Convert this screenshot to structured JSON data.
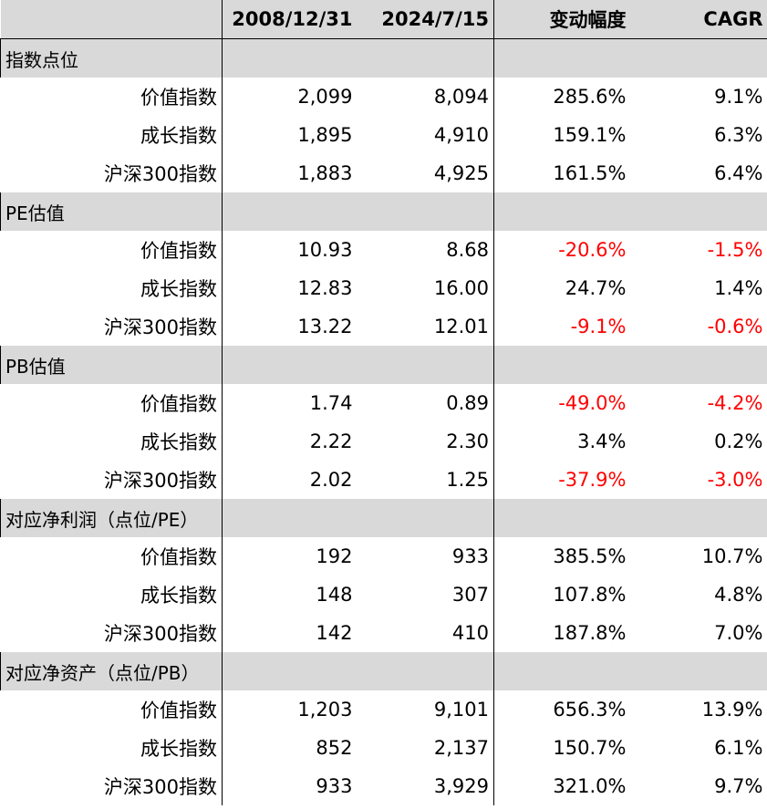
{
  "header": [
    "",
    "2008/12/31",
    "2024/7/15",
    "变动幅度",
    "CAGR"
  ],
  "sections": [
    {
      "title": "指数点位",
      "rows": [
        {
          "label": "价值指数",
          "v2008": "2,099",
          "v2024": "8,094",
          "change": "285.6%",
          "cagr": "9.1%"
        },
        {
          "label": "成长指数",
          "v2008": "1,895",
          "v2024": "4,910",
          "change": "159.1%",
          "cagr": "6.3%"
        },
        {
          "label": "沪深300指数",
          "v2008": "1,883",
          "v2024": "4,925",
          "change": "161.5%",
          "cagr": "6.4%"
        }
      ]
    },
    {
      "title": "PE估值",
      "rows": [
        {
          "label": "价值指数",
          "v2008": "10.93",
          "v2024": "8.68",
          "change": "-20.6%",
          "cagr": "-1.5%"
        },
        {
          "label": "成长指数",
          "v2008": "12.83",
          "v2024": "16.00",
          "change": "24.7%",
          "cagr": "1.4%"
        },
        {
          "label": "沪深300指数",
          "v2008": "13.22",
          "v2024": "12.01",
          "change": "-9.1%",
          "cagr": "-0.6%"
        }
      ]
    },
    {
      "title": "PB估值",
      "rows": [
        {
          "label": "价值指数",
          "v2008": "1.74",
          "v2024": "0.89",
          "change": "-49.0%",
          "cagr": "-4.2%"
        },
        {
          "label": "成长指数",
          "v2008": "2.22",
          "v2024": "2.30",
          "change": "3.4%",
          "cagr": "0.2%"
        },
        {
          "label": "沪深300指数",
          "v2008": "2.02",
          "v2024": "1.25",
          "change": "-37.9%",
          "cagr": "-3.0%"
        }
      ]
    },
    {
      "title": "对应净利润（点位/PE）",
      "rows": [
        {
          "label": "价值指数",
          "v2008": "192",
          "v2024": "933",
          "change": "385.5%",
          "cagr": "10.7%"
        },
        {
          "label": "成长指数",
          "v2008": "148",
          "v2024": "307",
          "change": "107.8%",
          "cagr": "4.8%"
        },
        {
          "label": "沪深300指数",
          "v2008": "142",
          "v2024": "410",
          "change": "187.8%",
          "cagr": "7.0%"
        }
      ]
    },
    {
      "title": "对应净资产（点位/PB）",
      "rows": [
        {
          "label": "价值指数",
          "v2008": "1,203",
          "v2024": "9,101",
          "change": "656.3%",
          "cagr": "13.9%"
        },
        {
          "label": "成长指数",
          "v2008": "852",
          "v2024": "2,137",
          "change": "150.7%",
          "cagr": "6.1%"
        },
        {
          "label": "沪深300指数",
          "v2008": "933",
          "v2024": "3,929",
          "change": "321.0%",
          "cagr": "9.7%"
        }
      ]
    }
  ],
  "colors": {
    "header_bg": "#d9d9d9",
    "negative": "#ff0000",
    "text": "#000000"
  }
}
